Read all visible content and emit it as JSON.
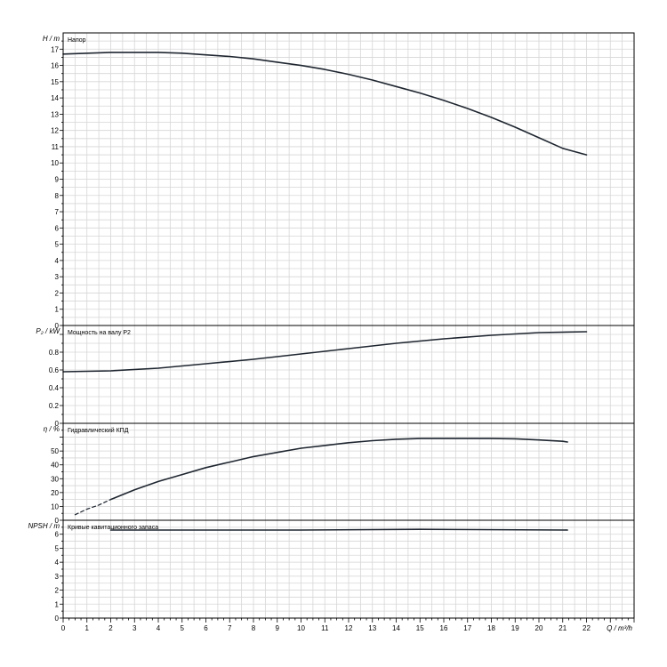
{
  "chart_data": [
    {
      "type": "line",
      "title": "Напор",
      "ylabel": "H / m",
      "xlim": [
        0,
        24
      ],
      "ylim": [
        0,
        18
      ],
      "yticks": [
        0,
        1,
        2,
        3,
        4,
        5,
        6,
        7,
        8,
        9,
        10,
        11,
        12,
        13,
        14,
        15,
        16,
        17
      ],
      "series": [
        {
          "x": [
            0,
            2,
            3,
            4,
            5,
            6,
            7,
            8,
            9,
            10,
            11,
            12,
            13,
            14,
            15,
            16,
            17,
            18,
            19,
            20,
            21,
            22
          ],
          "y": [
            16.7,
            16.8,
            16.8,
            16.8,
            16.75,
            16.65,
            16.55,
            16.4,
            16.2,
            16.0,
            15.75,
            15.45,
            15.1,
            14.7,
            14.3,
            13.85,
            13.35,
            12.8,
            12.2,
            11.55,
            10.9,
            10.5
          ]
        }
      ]
    },
    {
      "type": "line",
      "title": "Мощность на валу P2",
      "ylabel": "P₂ / kW",
      "xlim": [
        0,
        24
      ],
      "ylim": [
        0,
        1.1
      ],
      "yticks": [
        0,
        0.2,
        0.4,
        0.6,
        0.8,
        1
      ],
      "ytick_labels": [
        "0",
        "0.2",
        "0.4",
        "0.6",
        "0.8",
        ""
      ],
      "series": [
        {
          "x": [
            0,
            2,
            4,
            6,
            8,
            10,
            12,
            14,
            16,
            18,
            20,
            22
          ],
          "y": [
            0.58,
            0.59,
            0.62,
            0.67,
            0.72,
            0.78,
            0.84,
            0.9,
            0.95,
            0.99,
            1.02,
            1.03
          ]
        }
      ]
    },
    {
      "type": "line",
      "title": "Гидравлический КПД",
      "ylabel": "η / %",
      "xlim": [
        0,
        24
      ],
      "ylim": [
        0,
        70
      ],
      "yticks": [
        0,
        10,
        20,
        30,
        40,
        50,
        60
      ],
      "ytick_labels": [
        "0",
        "10",
        "20",
        "30",
        "40",
        "50",
        ""
      ],
      "series": [
        {
          "x": [
            0.5,
            1,
            1.5,
            2
          ],
          "y": [
            4,
            8,
            11,
            15
          ],
          "style": "dashed"
        },
        {
          "x": [
            2,
            3,
            4,
            5,
            6,
            7,
            8,
            9,
            10,
            11,
            12,
            13,
            14,
            15,
            16,
            17,
            18,
            19,
            20,
            21,
            21.2
          ],
          "y": [
            15,
            22,
            28,
            33,
            38,
            42,
            46,
            49,
            52,
            54,
            56,
            57.5,
            58.5,
            59,
            59,
            59,
            59,
            58.8,
            58,
            57,
            56.5
          ]
        }
      ]
    },
    {
      "type": "line",
      "title": "Кривые кавитационного запаса",
      "ylabel": "NPSH / m",
      "xlabel": "Q / m³/h",
      "xlim": [
        0,
        24
      ],
      "ylim": [
        0,
        7
      ],
      "xticks": [
        0,
        1,
        2,
        3,
        4,
        5,
        6,
        7,
        8,
        9,
        10,
        11,
        12,
        13,
        14,
        15,
        16,
        17,
        18,
        19,
        20,
        21,
        22
      ],
      "yticks": [
        0,
        1,
        2,
        3,
        4,
        5,
        6
      ],
      "series": [
        {
          "x": [
            2,
            10,
            15,
            21.2
          ],
          "y": [
            6.3,
            6.3,
            6.35,
            6.3
          ]
        }
      ]
    }
  ]
}
